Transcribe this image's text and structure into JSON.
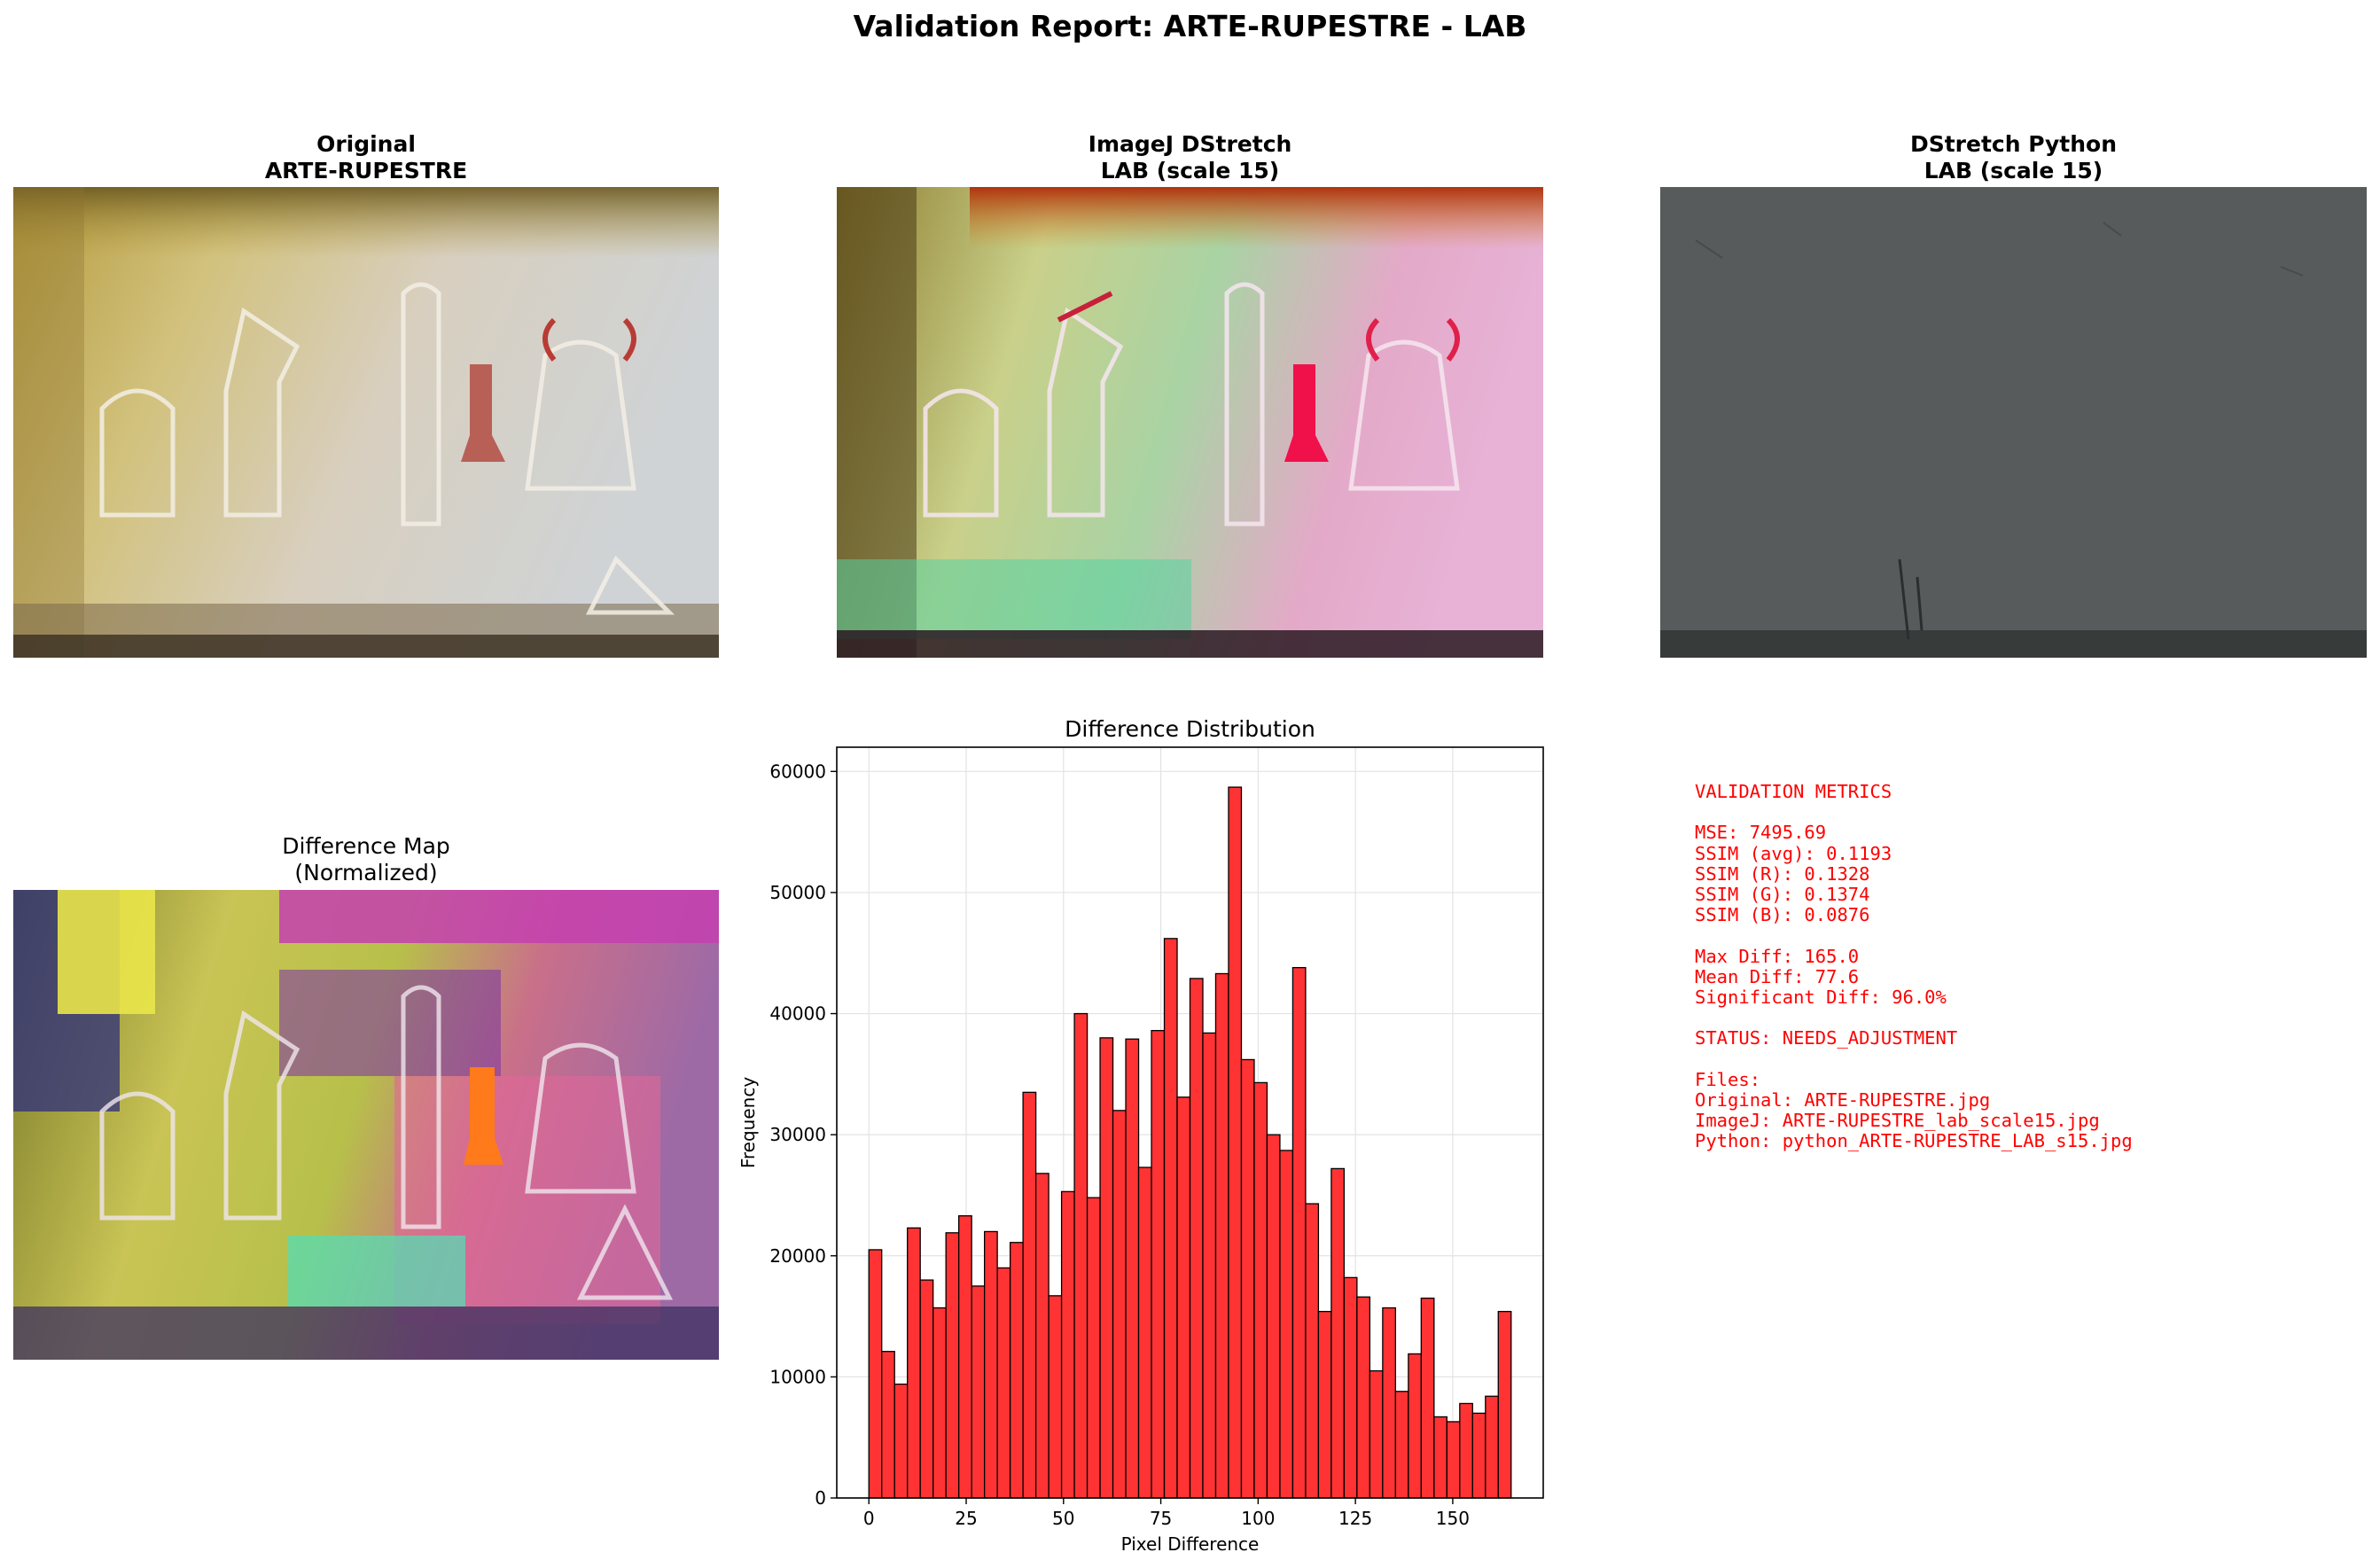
{
  "title": "Validation Report: ARTE-RUPESTRE - LAB",
  "panels": {
    "original": {
      "title_line1": "Original",
      "title_line2": "ARTE-RUPESTRE"
    },
    "imagej": {
      "title_line1": "ImageJ DStretch",
      "title_line2": "LAB (scale 15)"
    },
    "python": {
      "title_line1": "DStretch Python",
      "title_line2": "LAB (scale 15)"
    },
    "diffmap": {
      "title_line1": "Difference Map",
      "title_line2": "(Normalized)"
    }
  },
  "metrics": {
    "lines": [
      "VALIDATION METRICS",
      "",
      "MSE: 7495.69",
      "SSIM (avg): 0.1193",
      "SSIM (R): 0.1328",
      "SSIM (G): 0.1374",
      "SSIM (B): 0.0876",
      "",
      "Max Diff: 165.0",
      "Mean Diff: 77.6",
      "Significant Diff: 96.0%",
      "",
      "STATUS: NEEDS_ADJUSTMENT",
      "",
      "Files:",
      "Original: ARTE-RUPESTRE.jpg",
      "ImageJ: ARTE-RUPESTRE_lab_scale15.jpg",
      "Python: python_ARTE-RUPESTRE_LAB_s15.jpg"
    ],
    "color": "#ff0000"
  },
  "chart_data": {
    "type": "bar",
    "title": "Difference Distribution",
    "xlabel": "Pixel Difference",
    "ylabel": "Frequency",
    "xlim": [
      -8.25,
      173.25
    ],
    "ylim": [
      0,
      62000
    ],
    "xticks": [
      0,
      25,
      50,
      75,
      100,
      125,
      150
    ],
    "yticks": [
      0,
      10000,
      20000,
      30000,
      40000,
      50000,
      60000
    ],
    "bin_width": 3.3,
    "bin_start": 0,
    "values": [
      20500,
      12100,
      9400,
      22300,
      18000,
      15700,
      21900,
      23300,
      17500,
      22000,
      19000,
      21100,
      33500,
      26800,
      16700,
      25300,
      40000,
      24800,
      38000,
      32000,
      37900,
      27300,
      38600,
      46200,
      33100,
      42900,
      38400,
      43300,
      58700,
      36200,
      34300,
      30000,
      28700,
      43800,
      24300,
      15400,
      27200,
      18200,
      16600,
      10500,
      15700,
      8800,
      11900,
      16500,
      6700,
      6300,
      7800,
      7000,
      8400,
      15400
    ],
    "bar_color": "#ff3333",
    "edge_color": "#000000",
    "grid": true
  }
}
